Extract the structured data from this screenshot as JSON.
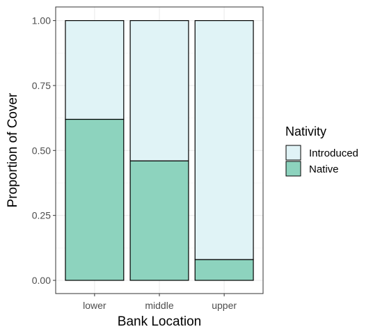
{
  "chart_data": {
    "type": "bar",
    "stacked": true,
    "categories": [
      "lower",
      "middle",
      "upper"
    ],
    "series": [
      {
        "name": "Native",
        "values": [
          0.62,
          0.46,
          0.08
        ],
        "color": "#8dd3be"
      },
      {
        "name": "Introduced",
        "values": [
          0.38,
          0.54,
          0.92
        ],
        "color": "#e0f3f6"
      }
    ],
    "xlabel": "Bank Location",
    "ylabel": "Proportion of Cover",
    "ylim": [
      0,
      1.05
    ],
    "yticks": [
      "0.00",
      "0.25",
      "0.50",
      "0.75",
      "1.00"
    ],
    "grid": true,
    "legend": {
      "title": "Nativity",
      "position": "right",
      "entries": [
        "Introduced",
        "Native"
      ]
    },
    "colors": {
      "panel_border": "#333333",
      "grid_major": "#ebebeb",
      "grid_minor": "#f5f5f5",
      "bar_outline": "#000000"
    }
  }
}
